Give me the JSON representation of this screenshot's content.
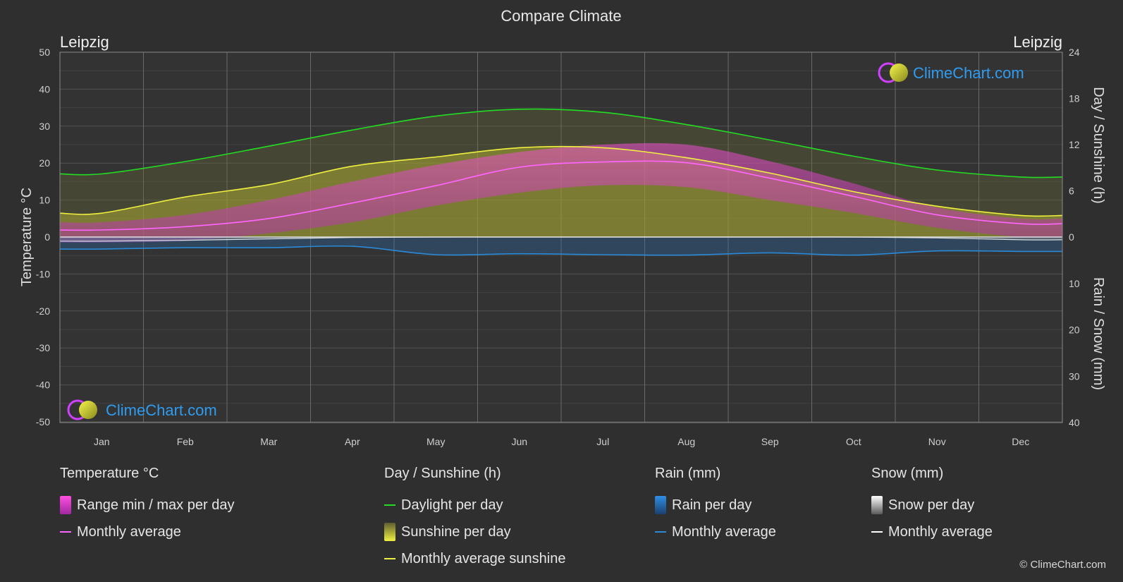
{
  "title": "Compare Climate",
  "location_left": "Leipzig",
  "location_right": "Leipzig",
  "brand": "ClimeChart.com",
  "copyright": "© ClimeChart.com",
  "colors": {
    "background": "#2f2f2f",
    "grid": "#555555",
    "daylight": "#22dd22",
    "sunshine_line": "#f0f040",
    "sunshine_fill": "#a8a832",
    "temp_avg": "#ff66ff",
    "temp_range": "#d040c0",
    "rain": "#2a8ad8",
    "snow": "#ffffff",
    "brand_text": "#2f9cf0"
  },
  "chart_data": {
    "type": "area",
    "title": "Compare Climate",
    "months": [
      "Jan",
      "Feb",
      "Mar",
      "Apr",
      "May",
      "Jun",
      "Jul",
      "Aug",
      "Sep",
      "Oct",
      "Nov",
      "Dec"
    ],
    "y_left": {
      "label": "Temperature °C",
      "range": [
        -50,
        50
      ],
      "ticks": [
        50,
        40,
        30,
        20,
        10,
        0,
        -10,
        -20,
        -30,
        -40,
        -50
      ]
    },
    "y_right_top": {
      "label": "Day / Sunshine (h)",
      "range": [
        0,
        24
      ],
      "ticks": [
        24,
        18,
        12,
        6,
        0
      ]
    },
    "y_right_bottom": {
      "label": "Rain / Snow (mm)",
      "range": [
        0,
        40
      ],
      "ticks": [
        0,
        10,
        20,
        30,
        40
      ]
    },
    "grid": true,
    "series": [
      {
        "name": "Daylight per day",
        "axis": "sunshine_h",
        "values": [
          8.2,
          9.8,
          11.8,
          13.9,
          15.7,
          16.6,
          16.2,
          14.6,
          12.6,
          10.5,
          8.7,
          7.8
        ]
      },
      {
        "name": "Monthly average sunshine",
        "axis": "sunshine_h",
        "values": [
          3.1,
          5.2,
          6.8,
          9.2,
          10.4,
          11.6,
          11.6,
          10.3,
          8.3,
          5.9,
          4.0,
          2.8
        ]
      },
      {
        "name": "Monthly average",
        "group": "Temperature °C",
        "axis": "temperature_c",
        "values": [
          1.9,
          2.8,
          5.0,
          9.2,
          13.9,
          18.9,
          20.3,
          20.1,
          15.9,
          11.0,
          6.0,
          3.6
        ]
      },
      {
        "name": "Range min / max per day",
        "group": "Temperature °C",
        "axis": "temperature_c",
        "min": [
          -1.5,
          -1.0,
          1.0,
          4.0,
          8.5,
          12.0,
          14.0,
          13.5,
          10.0,
          6.5,
          2.5,
          0.0
        ],
        "max": [
          4.0,
          6.0,
          10.0,
          15.0,
          19.5,
          23.0,
          25.0,
          25.0,
          20.5,
          14.5,
          8.0,
          5.0
        ]
      },
      {
        "name": "Monthly average",
        "group": "Rain (mm)",
        "axis": "rain_mm",
        "values": [
          2.6,
          2.3,
          2.3,
          2.0,
          3.8,
          3.6,
          3.8,
          3.9,
          3.4,
          3.9,
          3.0,
          3.1
        ]
      },
      {
        "name": "Monthly average",
        "group": "Snow (mm)",
        "axis": "rain_mm",
        "values": [
          0.9,
          0.7,
          0.4,
          0.1,
          0,
          0,
          0,
          0,
          0,
          0,
          0.2,
          0.6
        ]
      }
    ]
  },
  "legend": {
    "temperature": {
      "title": "Temperature °C",
      "items": [
        "Range min / max per day",
        "Monthly average"
      ]
    },
    "sunshine": {
      "title": "Day / Sunshine (h)",
      "items": [
        "Daylight per day",
        "Sunshine per day",
        "Monthly average sunshine"
      ]
    },
    "rain": {
      "title": "Rain (mm)",
      "items": [
        "Rain per day",
        "Monthly average"
      ]
    },
    "snow": {
      "title": "Snow (mm)",
      "items": [
        "Snow per day",
        "Monthly average"
      ]
    }
  }
}
